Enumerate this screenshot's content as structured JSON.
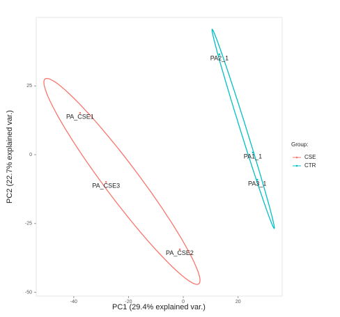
{
  "chart_data": {
    "type": "scatter",
    "x_label": "PC1 (29.4% explained var.)",
    "y_label": "PC2 (22.7% explained var.)",
    "xlim": [
      -53.7,
      36.1
    ],
    "xticks": [
      -40,
      -20,
      0,
      20
    ],
    "ylim": [
      -51.4,
      49.9
    ],
    "yticks": [
      -50,
      -25,
      0,
      25
    ],
    "grid": false,
    "ellipse": true,
    "legend_title": "Group:",
    "legend_position": "right",
    "series": [
      {
        "name": "CSE",
        "color": "#F8766D",
        "labels": [
          "PA_CSE1",
          "PA_CSE3",
          "PA_CSE2"
        ],
        "x": [
          -37.7,
          -28.2,
          -1.3
        ],
        "values": [
          15.2,
          -9.9,
          -34.4
        ]
      },
      {
        "name": "CTR",
        "color": "#00BFC4",
        "labels": [
          "PA2_1",
          "PA1_1",
          "PA3_1"
        ],
        "x": [
          13.2,
          25.4,
          27.0
        ],
        "values": [
          36.5,
          0.8,
          -9.1
        ]
      }
    ]
  }
}
